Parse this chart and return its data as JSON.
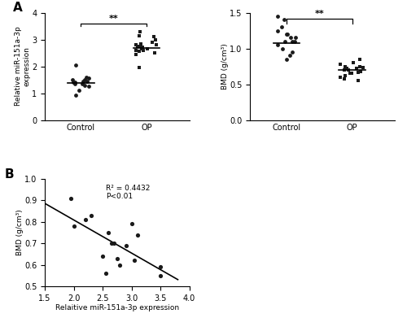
{
  "panel_A1": {
    "control_dots": [
      1.1,
      1.25,
      1.3,
      1.35,
      1.35,
      1.4,
      1.4,
      1.45,
      1.45,
      1.5,
      1.5,
      1.55,
      1.6,
      2.05,
      0.92
    ],
    "op_squares": [
      2.5,
      2.55,
      2.6,
      2.6,
      2.65,
      2.65,
      2.7,
      2.7,
      2.75,
      2.75,
      2.8,
      2.85,
      2.9,
      3.0,
      3.1,
      3.3,
      1.95,
      2.45,
      2.8,
      3.15
    ],
    "control_median": 1.38,
    "op_median": 2.67,
    "ylabel": "Relative miR-151a-3p\nexpression",
    "ylim": [
      0,
      4.0
    ],
    "yticks": [
      0,
      1,
      2,
      3,
      4
    ],
    "sig_text": "**"
  },
  "panel_A2": {
    "control_dots": [
      1.05,
      1.1,
      1.1,
      1.15,
      1.15,
      1.2,
      1.2,
      1.25,
      1.3,
      0.85,
      0.9,
      0.95,
      1.4,
      1.45,
      1.0,
      1.1
    ],
    "op_squares": [
      0.62,
      0.65,
      0.65,
      0.68,
      0.7,
      0.7,
      0.72,
      0.72,
      0.75,
      0.75,
      0.78,
      0.8,
      0.85,
      0.55,
      0.58,
      0.6,
      0.67,
      0.73
    ],
    "control_median": 1.07,
    "op_median": 0.7,
    "ylabel": "BMD (g/cm³)",
    "ylim": [
      0.0,
      1.5
    ],
    "yticks": [
      0.0,
      0.5,
      1.0,
      1.5
    ],
    "sig_text": "**"
  },
  "panel_B": {
    "x": [
      1.95,
      2.0,
      2.2,
      2.3,
      2.5,
      2.55,
      2.6,
      2.65,
      2.7,
      2.75,
      2.8,
      2.9,
      3.0,
      3.05,
      3.1,
      3.5,
      3.5
    ],
    "y": [
      0.91,
      0.78,
      0.81,
      0.83,
      0.64,
      0.56,
      0.75,
      0.7,
      0.7,
      0.63,
      0.6,
      0.69,
      0.79,
      0.62,
      0.74,
      0.55,
      0.59
    ],
    "r2": 0.4432,
    "xlabel": "Relaitive miR-151a-3p expression",
    "ylabel": "BMD (g/cm³)",
    "xlim": [
      1.5,
      4.0
    ],
    "ylim": [
      0.5,
      1.0
    ],
    "xticks": [
      1.5,
      2.0,
      2.5,
      3.0,
      3.5,
      4.0
    ],
    "yticks": [
      0.5,
      0.6,
      0.7,
      0.8,
      0.9,
      1.0
    ],
    "annot": "R² = 0.4432\nP<0.01"
  },
  "bg_color": "#ffffff",
  "dot_color": "#1a1a1a",
  "fontsize": 7,
  "label_fontsize": 7
}
